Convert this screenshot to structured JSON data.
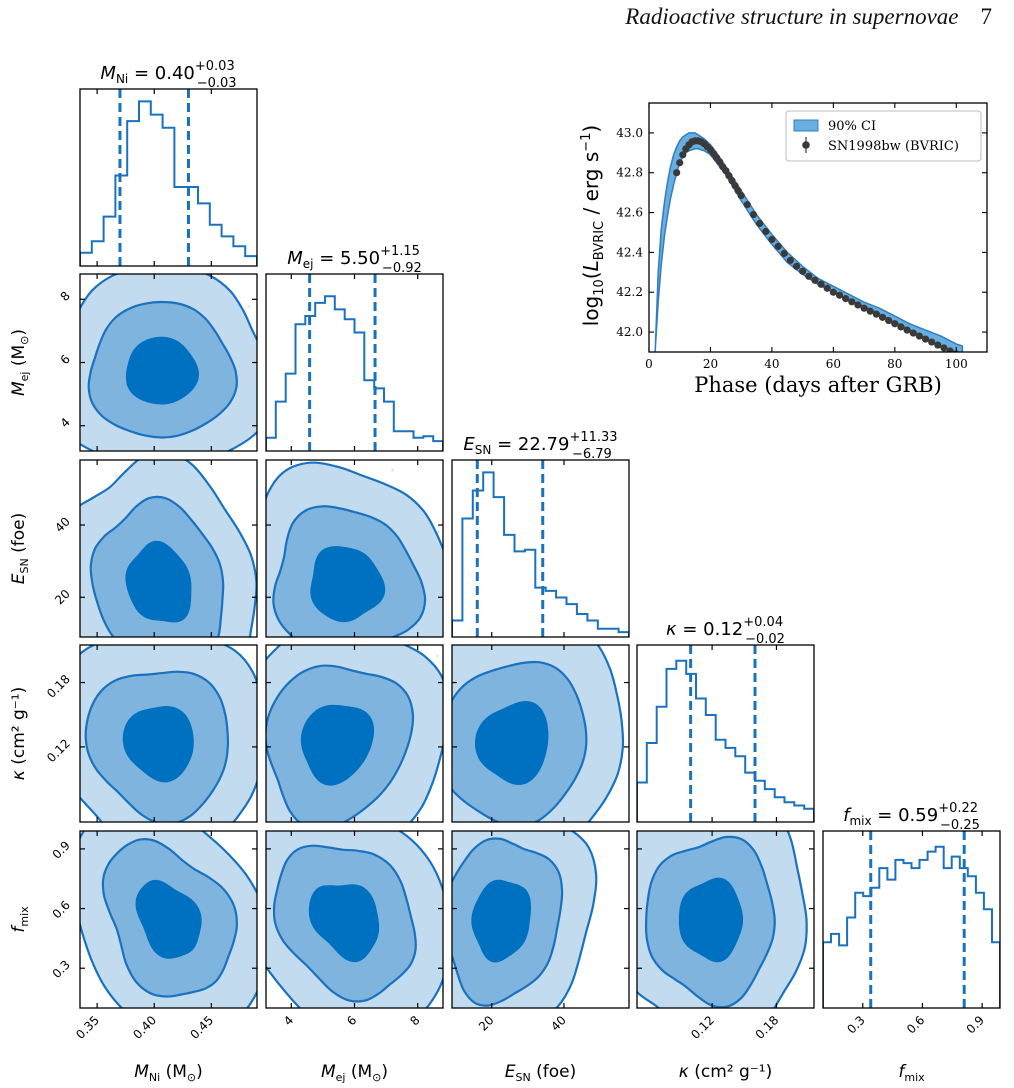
{
  "page_header": {
    "running_title": "Radioactive structure in supernovae",
    "page_number": "7"
  },
  "colors": {
    "dark": "#0070c0",
    "mid": "#7eb4de",
    "light": "#c3dbef",
    "line": "#1a72be",
    "ci_fill": "#6aaedf",
    "points": "#3a3a3a"
  },
  "chart_data": [
    {
      "type": "corner",
      "parameters": [
        {
          "key": "mni",
          "axis_label": "M_Ni (M_⊙)",
          "title": "M_Ni = 0.40 +0.03 −0.03",
          "median": 0.4,
          "err_plus": 0.03,
          "err_minus": 0.03,
          "range": [
            0.335,
            0.49
          ],
          "ticks": [
            0.35,
            0.4,
            0.45
          ],
          "tick_labels": [
            "0.35",
            "0.40",
            "0.45"
          ],
          "quantiles": [
            0.37,
            0.43
          ]
        },
        {
          "key": "mej",
          "axis_label": "M_ej (M_⊙)",
          "title": "M_ej = 5.50 +1.15 −0.92",
          "median": 5.5,
          "err_plus": 1.15,
          "err_minus": 0.92,
          "range": [
            3.2,
            8.8
          ],
          "ticks": [
            4,
            6,
            8
          ],
          "tick_labels": [
            "4",
            "6",
            "8"
          ],
          "quantiles": [
            4.58,
            6.65
          ]
        },
        {
          "key": "esn",
          "axis_label": "E_SN (foe)",
          "title": "E_SN = 22.79 +11.33 −6.79",
          "median": 22.79,
          "err_plus": 11.33,
          "err_minus": 6.79,
          "range": [
            9,
            58
          ],
          "ticks": [
            20,
            40
          ],
          "tick_labels": [
            "20",
            "40"
          ],
          "quantiles": [
            16.0,
            34.12
          ]
        },
        {
          "key": "kappa",
          "axis_label": "κ (cm² g⁻¹)",
          "title": "κ = 0.12 +0.04 −0.02",
          "median": 0.12,
          "err_plus": 0.04,
          "err_minus": 0.02,
          "range": [
            0.05,
            0.215
          ],
          "ticks": [
            0.12,
            0.18
          ],
          "tick_labels": [
            "0.12",
            "0.18"
          ],
          "quantiles": [
            0.1,
            0.16
          ]
        },
        {
          "key": "fmix",
          "axis_label": "f_mix",
          "title": "f_mix = 0.59 +0.22 −0.25",
          "median": 0.59,
          "err_plus": 0.22,
          "err_minus": 0.25,
          "range": [
            0.1,
            0.99
          ],
          "ticks": [
            0.3,
            0.6,
            0.9
          ],
          "tick_labels": [
            "0.3",
            "0.6",
            "0.9"
          ],
          "quantiles": [
            0.34,
            0.81
          ]
        }
      ],
      "histograms": [
        [
          0.08,
          0.15,
          0.3,
          0.55,
          0.88,
          1.0,
          0.92,
          0.84,
          0.48,
          0.48,
          0.38,
          0.25,
          0.18,
          0.12,
          0.06
        ],
        [
          0.08,
          0.3,
          0.47,
          0.77,
          0.82,
          0.9,
          0.94,
          0.86,
          0.8,
          0.72,
          0.43,
          0.38,
          0.3,
          0.12,
          0.12,
          0.08,
          0.09,
          0.06
        ],
        [
          0.1,
          0.72,
          0.89,
          1.0,
          0.85,
          0.62,
          0.52,
          0.53,
          0.3,
          0.28,
          0.24,
          0.2,
          0.14,
          0.1,
          0.05,
          0.05,
          0.03
        ],
        [
          0.24,
          0.48,
          0.7,
          0.93,
          0.98,
          0.9,
          0.75,
          0.65,
          0.5,
          0.45,
          0.4,
          0.3,
          0.25,
          0.2,
          0.15,
          0.12,
          0.1,
          0.08
        ],
        [
          0.4,
          0.45,
          0.38,
          0.55,
          0.7,
          0.68,
          0.73,
          0.85,
          0.78,
          0.9,
          0.88,
          0.85,
          0.9,
          0.95,
          0.98,
          0.85,
          0.92,
          0.85,
          0.8,
          0.7,
          0.6,
          0.4
        ]
      ]
    },
    {
      "type": "line",
      "xlabel": "Phase (days after GRB)",
      "ylabel": "log10(L_BVRIC / erg s⁻¹)",
      "xlim": [
        0,
        110
      ],
      "ylim": [
        41.9,
        43.15
      ],
      "xticks": [
        0,
        20,
        40,
        60,
        80,
        100
      ],
      "yticks": [
        42.0,
        42.2,
        42.4,
        42.6,
        42.8,
        43.0
      ],
      "ytick_labels": [
        "42.0",
        "42.2",
        "42.4",
        "42.6",
        "42.8",
        "43.0"
      ],
      "legend": {
        "placement": "top-right",
        "entries": [
          "90% CI",
          "SN1998bw (BVRIC)"
        ]
      },
      "ci_band": {
        "x": [
          2,
          3,
          4,
          5,
          6,
          7,
          8,
          9,
          10,
          11,
          12,
          13,
          14,
          15,
          16,
          17,
          18,
          20,
          22,
          25,
          30,
          35,
          40,
          45,
          50,
          55,
          60,
          65,
          70,
          75,
          80,
          85,
          90,
          95,
          100,
          102
        ],
        "lower": [
          41.9,
          42.15,
          42.34,
          42.48,
          42.58,
          42.67,
          42.74,
          42.8,
          42.85,
          42.88,
          42.9,
          42.91,
          42.915,
          42.92,
          42.92,
          42.915,
          42.91,
          42.89,
          42.85,
          42.79,
          42.66,
          42.54,
          42.44,
          42.35,
          42.29,
          42.24,
          42.2,
          42.16,
          42.13,
          42.09,
          42.05,
          42.01,
          41.97,
          41.93,
          41.9,
          41.89
        ],
        "upper": [
          41.9,
          42.3,
          42.52,
          42.65,
          42.75,
          42.83,
          42.89,
          42.93,
          42.96,
          42.98,
          42.99,
          43.0,
          43.0,
          43.0,
          42.99,
          42.98,
          42.97,
          42.94,
          42.9,
          42.83,
          42.71,
          42.59,
          42.49,
          42.4,
          42.33,
          42.27,
          42.23,
          42.19,
          42.15,
          42.12,
          42.08,
          42.04,
          42.01,
          41.98,
          41.94,
          41.93
        ]
      },
      "points": {
        "name": "SN1998bw (BVRIC)",
        "x": [
          9,
          10,
          11,
          12,
          13,
          14,
          15,
          16,
          17,
          18,
          19,
          20,
          21,
          22,
          23,
          24,
          25,
          26,
          27,
          28,
          29,
          30,
          32,
          34,
          36,
          38,
          40,
          42,
          44,
          46,
          48,
          50,
          52,
          54,
          56,
          58,
          60,
          62,
          64,
          66,
          68,
          70,
          72,
          74,
          76,
          78,
          80,
          82,
          84,
          86,
          88,
          90,
          92,
          94,
          96,
          98,
          100
        ],
        "y": [
          42.8,
          42.85,
          42.89,
          42.92,
          42.94,
          42.955,
          42.96,
          42.96,
          42.955,
          42.945,
          42.93,
          42.915,
          42.895,
          42.875,
          42.855,
          42.83,
          42.81,
          42.785,
          42.76,
          42.735,
          42.71,
          42.685,
          42.64,
          42.59,
          42.545,
          42.505,
          42.465,
          42.43,
          42.395,
          42.36,
          42.33,
          42.305,
          42.28,
          42.26,
          42.24,
          42.22,
          42.2,
          42.185,
          42.168,
          42.152,
          42.136,
          42.12,
          42.105,
          42.09,
          42.074,
          42.058,
          42.042,
          42.026,
          42.01,
          41.995,
          41.98,
          41.965,
          41.95,
          41.935,
          41.92,
          41.905,
          41.89
        ]
      }
    }
  ]
}
